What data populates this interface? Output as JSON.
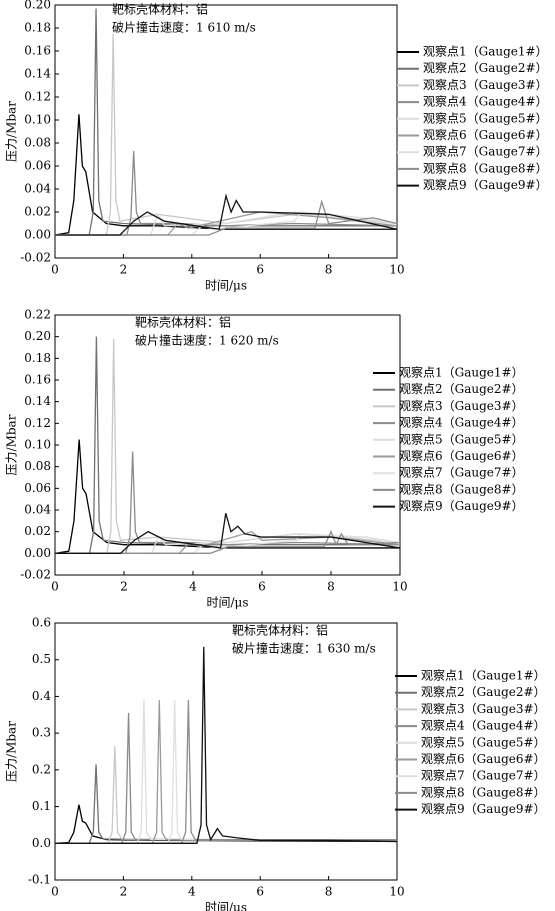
{
  "chart_data": [
    {
      "type": "line",
      "annotations": [
        "靶标壳体材料：铝",
        "破片撞击速度：1 610 m/s"
      ],
      "x_label": "时间/μs",
      "y_label": "压力/Mbar",
      "xlim": [
        0,
        10
      ],
      "xticks": [
        0,
        2,
        4,
        6,
        8,
        10
      ],
      "ylim": [
        -0.02,
        0.2
      ],
      "yticks": [
        -0.02,
        {
          "value": 0,
          "label": "0.00"
        },
        0.02,
        0.04,
        0.06,
        0.08,
        {
          "value": 0.1,
          "label": "0.10"
        },
        0.12,
        0.14,
        0.16,
        0.18,
        {
          "value": 0.2,
          "label": "0.20"
        }
      ],
      "series": [
        {
          "name": "观察点1（Gauge1#）",
          "color": "#000000",
          "x": [
            0,
            0.4,
            0.55,
            0.7,
            0.8,
            0.9,
            1.1,
            1.5,
            2,
            3,
            5,
            10
          ],
          "values": [
            0,
            0.002,
            0.03,
            0.105,
            0.06,
            0.055,
            0.02,
            0.01,
            0.008,
            0.008,
            0.005,
            0.005
          ]
        },
        {
          "name": "观察点2（Gauge2#）",
          "color": "#707070",
          "x": [
            0,
            1,
            1.12,
            1.2,
            1.28,
            1.4,
            2,
            4,
            6,
            8,
            10
          ],
          "values": [
            0,
            0,
            0.02,
            0.197,
            0.03,
            0.012,
            0.01,
            0.008,
            0.008,
            0.008,
            0.008
          ]
        },
        {
          "name": "观察点3（Gauge3#）",
          "color": "#c8c8c8",
          "x": [
            0,
            1.5,
            1.62,
            1.7,
            1.78,
            1.9,
            3,
            5,
            7,
            10
          ],
          "values": [
            0,
            0,
            0.02,
            0.175,
            0.03,
            0.012,
            0.018,
            0.01,
            0.018,
            0.01
          ]
        },
        {
          "name": "观察点4（Gauge4#）",
          "color": "#8a8a8a",
          "x": [
            0,
            2.1,
            2.22,
            2.3,
            2.38,
            2.5,
            3.6,
            5,
            7,
            10
          ],
          "values": [
            0,
            0,
            0.015,
            0.073,
            0.02,
            0.01,
            0.01,
            0.008,
            0.01,
            0.008
          ]
        },
        {
          "name": "观察点5（Gauge5#）",
          "color": "#dcdcdc",
          "x": [
            0,
            2.8,
            3,
            3.2,
            5,
            7,
            8.5,
            10
          ],
          "values": [
            0,
            0,
            0.018,
            0.008,
            0.01,
            0.02,
            0.015,
            0.01
          ]
        },
        {
          "name": "观察点6（Gauge6#）",
          "color": "#999999",
          "x": [
            0,
            3.3,
            3.6,
            3.9,
            6,
            8,
            10
          ],
          "values": [
            0,
            0,
            0.01,
            0.006,
            0.02,
            0.015,
            0.008
          ]
        },
        {
          "name": "观察点7（Gauge7#）",
          "color": "#e0e0e0",
          "x": [
            0,
            4,
            4.3,
            4.6,
            7,
            7.2,
            9,
            10
          ],
          "values": [
            0,
            0,
            0.008,
            0.005,
            0.012,
            0.02,
            0.015,
            0.01
          ]
        },
        {
          "name": "观察点8（Gauge8#）",
          "color": "#8c8c8c",
          "x": [
            0,
            4.5,
            5,
            7.6,
            7.8,
            8,
            9.3,
            10
          ],
          "values": [
            0,
            0,
            0.006,
            0.006,
            0.029,
            0.01,
            0.015,
            0.01
          ]
        },
        {
          "name": "观察点9（Gauge9#）",
          "color": "#111111",
          "x": [
            0,
            1.9,
            2.3,
            2.7,
            3.2,
            4.8,
            5,
            5.15,
            5.3,
            5.5,
            6,
            8,
            10
          ],
          "values": [
            0,
            0,
            0.012,
            0.02,
            0.012,
            0.005,
            0.034,
            0.02,
            0.03,
            0.02,
            0.02,
            0.018,
            0.005
          ]
        }
      ]
    },
    {
      "type": "line",
      "annotations": [
        "靶标壳体材料：铝",
        "破片撞击速度：1 620 m/s"
      ],
      "x_label": "时间/μs",
      "y_label": "压力/Mbar",
      "xlim": [
        0,
        10
      ],
      "xticks": [
        0,
        2,
        4,
        6,
        8,
        10
      ],
      "ylim": [
        -0.02,
        0.22
      ],
      "yticks": [
        -0.02,
        {
          "value": 0,
          "label": "0.00"
        },
        0.02,
        0.04,
        0.06,
        0.08,
        {
          "value": 0.1,
          "label": "0.10"
        },
        0.12,
        0.14,
        0.16,
        0.18,
        {
          "value": 0.2,
          "label": "0.20"
        },
        0.22
      ],
      "series": [
        {
          "name": "观察点1（Gauge1#）",
          "color": "#000000",
          "x": [
            0,
            0.4,
            0.55,
            0.7,
            0.8,
            0.9,
            1.1,
            1.5,
            2,
            3,
            5,
            10
          ],
          "values": [
            0,
            0.002,
            0.03,
            0.105,
            0.06,
            0.055,
            0.02,
            0.01,
            0.008,
            0.008,
            0.005,
            0.005
          ]
        },
        {
          "name": "观察点2（Gauge2#）",
          "color": "#707070",
          "x": [
            0,
            1,
            1.12,
            1.2,
            1.28,
            1.4,
            2,
            4,
            6,
            8,
            10
          ],
          "values": [
            0,
            0,
            0.02,
            0.2,
            0.03,
            0.012,
            0.01,
            0.008,
            0.008,
            0.008,
            0.008
          ]
        },
        {
          "name": "观察点3（Gauge3#）",
          "color": "#c8c8c8",
          "x": [
            0,
            1.5,
            1.62,
            1.7,
            1.78,
            1.9,
            3,
            5,
            7,
            10
          ],
          "values": [
            0,
            0,
            0.02,
            0.198,
            0.03,
            0.012,
            0.015,
            0.01,
            0.018,
            0.01
          ]
        },
        {
          "name": "观察点4（Gauge4#）",
          "color": "#8a8a8a",
          "x": [
            0,
            2.05,
            2.17,
            2.25,
            2.33,
            2.45,
            3.9,
            5,
            7,
            10
          ],
          "values": [
            0,
            0,
            0.015,
            0.094,
            0.02,
            0.01,
            0.01,
            0.008,
            0.01,
            0.008
          ]
        },
        {
          "name": "观察点5（Gauge5#）",
          "color": "#dcdcdc",
          "x": [
            0,
            2.8,
            3,
            3.2,
            5,
            7,
            8.5,
            10
          ],
          "values": [
            0,
            0,
            0.016,
            0.008,
            0.01,
            0.018,
            0.015,
            0.01
          ]
        },
        {
          "name": "观察点6（Gauge6#）",
          "color": "#999999",
          "x": [
            0,
            3.6,
            3.9,
            4.2,
            5.7,
            6,
            8,
            10
          ],
          "values": [
            0,
            0,
            0.01,
            0.006,
            0.02,
            0.012,
            0.015,
            0.008
          ]
        },
        {
          "name": "观察点7（Gauge7#）",
          "color": "#e0e0e0",
          "x": [
            0,
            4,
            4.3,
            4.6,
            7,
            7.1,
            9,
            10
          ],
          "values": [
            0,
            0,
            0.008,
            0.005,
            0.012,
            0.018,
            0.015,
            0.01
          ]
        },
        {
          "name": "观察点8（Gauge8#）",
          "color": "#8c8c8c",
          "x": [
            0,
            4.5,
            5,
            7.8,
            8,
            8.15,
            8.3,
            8.5,
            10
          ],
          "values": [
            0,
            0,
            0.006,
            0.006,
            0.02,
            0.008,
            0.018,
            0.008,
            0.01
          ]
        },
        {
          "name": "观察点9（Gauge9#）",
          "color": "#111111",
          "x": [
            0,
            1.9,
            2.3,
            2.7,
            3.2,
            4.8,
            4.95,
            5.1,
            5.3,
            5.5,
            6,
            8,
            10
          ],
          "values": [
            0,
            0,
            0.012,
            0.02,
            0.012,
            0.005,
            0.037,
            0.02,
            0.025,
            0.018,
            0.015,
            0.015,
            0.005
          ]
        }
      ]
    },
    {
      "type": "line",
      "annotations": [
        "靶标壳体材料：铝",
        "破片撞击速度：1 630 m/s"
      ],
      "x_label": "时间/μs",
      "y_label": "压力/Mbar",
      "xlim": [
        0,
        10
      ],
      "xticks": [
        0,
        2,
        4,
        6,
        8,
        10
      ],
      "ylim": [
        -0.1,
        0.6
      ],
      "yticks": [
        -0.1,
        {
          "value": 0,
          "label": "0.0"
        },
        0.1,
        0.2,
        0.3,
        0.4,
        0.5,
        0.6
      ],
      "series": [
        {
          "name": "观察点1（Gauge1#）",
          "color": "#000000",
          "x": [
            0,
            0.4,
            0.55,
            0.7,
            0.8,
            0.9,
            1.1,
            1.5,
            3,
            10
          ],
          "values": [
            0,
            0.002,
            0.03,
            0.105,
            0.06,
            0.055,
            0.02,
            0.01,
            0.008,
            0.005
          ]
        },
        {
          "name": "观察点2（Gauge2#）",
          "color": "#707070",
          "x": [
            0,
            1,
            1.12,
            1.2,
            1.28,
            1.4,
            4,
            10
          ],
          "values": [
            0,
            0,
            0.03,
            0.215,
            0.03,
            0.012,
            0.008,
            0.008
          ]
        },
        {
          "name": "观察点3（Gauge3#）",
          "color": "#c8c8c8",
          "x": [
            0,
            1.55,
            1.67,
            1.75,
            1.83,
            1.95,
            5,
            10
          ],
          "values": [
            0,
            0,
            0.03,
            0.265,
            0.03,
            0.012,
            0.01,
            0.01
          ]
        },
        {
          "name": "观察点4（Gauge4#）",
          "color": "#8a8a8a",
          "x": [
            0,
            1.95,
            2.07,
            2.15,
            2.23,
            2.35,
            5,
            10
          ],
          "values": [
            0,
            0,
            0.03,
            0.355,
            0.03,
            0.01,
            0.01,
            0.008
          ]
        },
        {
          "name": "观察点5（Gauge5#）",
          "color": "#dcdcdc",
          "x": [
            0,
            2.4,
            2.52,
            2.6,
            2.68,
            2.8,
            6,
            10
          ],
          "values": [
            0,
            0,
            0.03,
            0.39,
            0.03,
            0.01,
            0.01,
            0.01
          ]
        },
        {
          "name": "观察点6（Gauge6#）",
          "color": "#999999",
          "x": [
            0,
            2.85,
            2.97,
            3.05,
            3.13,
            3.25,
            6,
            10
          ],
          "values": [
            0,
            0,
            0.03,
            0.39,
            0.03,
            0.01,
            0.01,
            0.008
          ]
        },
        {
          "name": "观察点7（Gauge7#）",
          "color": "#e0e0e0",
          "x": [
            0,
            3.3,
            3.42,
            3.5,
            3.58,
            3.7,
            7,
            10
          ],
          "values": [
            0,
            0,
            0.03,
            0.39,
            0.03,
            0.01,
            0.01,
            0.01
          ]
        },
        {
          "name": "观察点8（Gauge8#）",
          "color": "#8c8c8c",
          "x": [
            0,
            3.7,
            3.82,
            3.9,
            3.98,
            4.1,
            8,
            10
          ],
          "values": [
            0,
            0,
            0.03,
            0.39,
            0.03,
            0.01,
            0.01,
            0.01
          ]
        },
        {
          "name": "观察点9（Gauge9#）",
          "color": "#111111",
          "x": [
            0,
            4.15,
            4.27,
            4.35,
            4.43,
            4.55,
            4.75,
            4.9,
            5.3,
            6,
            8,
            10
          ],
          "values": [
            0,
            0,
            0.05,
            0.535,
            0.05,
            0.01,
            0.04,
            0.02,
            0.015,
            0.008,
            0.008,
            0.005
          ]
        }
      ]
    }
  ]
}
